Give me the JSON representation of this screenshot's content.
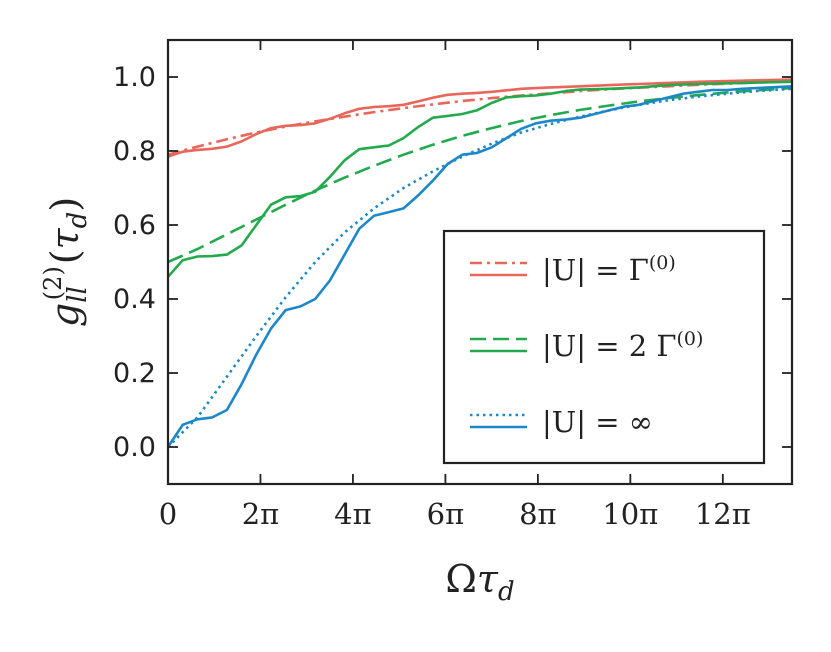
{
  "chart_data": {
    "type": "line",
    "title": "",
    "xlabel": "Ωτ_d",
    "ylabel": "g_ll^(2)(τ_d)",
    "xlim": [
      0,
      42.4
    ],
    "ylim": [
      -0.1,
      1.1
    ],
    "x_ticks": [
      {
        "value": 0,
        "label": "0"
      },
      {
        "value": 6.2832,
        "label": "2π"
      },
      {
        "value": 12.5664,
        "label": "4π"
      },
      {
        "value": 18.8496,
        "label": "6π"
      },
      {
        "value": 25.1327,
        "label": "8π"
      },
      {
        "value": 31.4159,
        "label": "10π"
      },
      {
        "value": 37.6991,
        "label": "12π"
      }
    ],
    "y_ticks": [
      {
        "value": 0.0,
        "label": "0.0"
      },
      {
        "value": 0.2,
        "label": "0.2"
      },
      {
        "value": 0.4,
        "label": "0.4"
      },
      {
        "value": 0.6,
        "label": "0.6"
      },
      {
        "value": 0.8,
        "label": "0.8"
      },
      {
        "value": 1.0,
        "label": "1.0"
      }
    ],
    "grid": false,
    "legend_position": "lower-right",
    "series": [
      {
        "name": "|U| = Γ^(0)",
        "kind": "approx",
        "style": "dashdot",
        "color": "#e9675a",
        "x": [
          0,
          2,
          4,
          6,
          8,
          10,
          12,
          14,
          16,
          18,
          20,
          22,
          24,
          26,
          28,
          30,
          32,
          34,
          36,
          38,
          40,
          42.4
        ],
        "y": [
          0.79,
          0.812,
          0.832,
          0.85,
          0.866,
          0.88,
          0.893,
          0.905,
          0.916,
          0.926,
          0.935,
          0.943,
          0.95,
          0.956,
          0.962,
          0.967,
          0.971,
          0.975,
          0.979,
          0.982,
          0.985,
          0.988
        ]
      },
      {
        "name": "|U| = Γ^(0)",
        "kind": "exact",
        "style": "solid",
        "color": "#e9675a",
        "x": [
          0,
          1,
          2,
          3,
          4,
          5,
          6,
          7,
          8,
          9,
          10,
          11,
          12,
          13,
          14,
          15,
          16,
          17,
          18,
          19,
          20,
          21,
          22,
          23,
          24,
          25,
          26,
          28,
          30,
          32,
          34,
          36,
          38,
          40,
          42.4
        ],
        "y": [
          0.785,
          0.798,
          0.803,
          0.806,
          0.812,
          0.826,
          0.846,
          0.862,
          0.868,
          0.87,
          0.875,
          0.887,
          0.902,
          0.914,
          0.919,
          0.921,
          0.925,
          0.934,
          0.944,
          0.952,
          0.955,
          0.957,
          0.96,
          0.964,
          0.968,
          0.97,
          0.972,
          0.975,
          0.978,
          0.981,
          0.984,
          0.987,
          0.989,
          0.991,
          0.993
        ]
      },
      {
        "name": "|U| = 2 Γ^(0)",
        "kind": "approx",
        "style": "dashed",
        "color": "#22aa4d",
        "x": [
          0,
          2,
          4,
          6,
          8,
          10,
          12,
          14,
          16,
          18,
          20,
          22,
          24,
          26,
          28,
          30,
          32,
          34,
          36,
          38,
          40,
          42.4
        ],
        "y": [
          0.5,
          0.535,
          0.575,
          0.615,
          0.655,
          0.693,
          0.728,
          0.76,
          0.79,
          0.817,
          0.841,
          0.862,
          0.881,
          0.897,
          0.911,
          0.923,
          0.934,
          0.943,
          0.951,
          0.958,
          0.964,
          0.97
        ]
      },
      {
        "name": "|U| = 2 Γ^(0)",
        "kind": "exact",
        "style": "solid",
        "color": "#22aa4d",
        "x": [
          0,
          1,
          2,
          3,
          4,
          5,
          6,
          7,
          8,
          9,
          10,
          11,
          12,
          13,
          14,
          15,
          16,
          17,
          18,
          19,
          20,
          21,
          22,
          23,
          24,
          25,
          26,
          27,
          28,
          30,
          32,
          34,
          36,
          38,
          40,
          42.4
        ],
        "y": [
          0.46,
          0.505,
          0.515,
          0.516,
          0.52,
          0.545,
          0.6,
          0.655,
          0.675,
          0.678,
          0.69,
          0.73,
          0.775,
          0.805,
          0.81,
          0.815,
          0.835,
          0.865,
          0.89,
          0.895,
          0.9,
          0.91,
          0.93,
          0.945,
          0.948,
          0.95,
          0.955,
          0.962,
          0.966,
          0.968,
          0.972,
          0.978,
          0.981,
          0.983,
          0.985,
          0.987
        ]
      },
      {
        "name": "|U| = ∞",
        "kind": "approx",
        "style": "dotted",
        "color": "#1c87c9",
        "x": [
          0,
          2,
          4,
          6,
          8,
          10,
          12,
          14,
          16,
          18,
          20,
          22,
          24,
          26,
          28,
          30,
          32,
          34,
          36,
          38,
          40,
          42.4
        ],
        "y": [
          0.0,
          0.08,
          0.19,
          0.3,
          0.405,
          0.5,
          0.58,
          0.645,
          0.7,
          0.745,
          0.785,
          0.82,
          0.85,
          0.873,
          0.893,
          0.91,
          0.925,
          0.937,
          0.947,
          0.955,
          0.962,
          0.968
        ]
      },
      {
        "name": "|U| = ∞",
        "kind": "exact",
        "style": "solid",
        "color": "#1c87c9",
        "x": [
          0,
          1,
          2,
          3,
          4,
          5,
          6,
          7,
          8,
          9,
          10,
          11,
          12,
          13,
          14,
          15,
          16,
          17,
          18,
          19,
          20,
          21,
          22,
          23,
          24,
          25,
          26,
          27,
          28,
          29,
          30,
          31,
          32,
          33,
          34,
          35,
          36,
          37,
          38,
          39,
          40,
          42.4
        ],
        "y": [
          0.0,
          0.06,
          0.075,
          0.08,
          0.1,
          0.17,
          0.25,
          0.32,
          0.37,
          0.38,
          0.4,
          0.45,
          0.52,
          0.59,
          0.625,
          0.635,
          0.645,
          0.68,
          0.72,
          0.765,
          0.79,
          0.795,
          0.81,
          0.835,
          0.86,
          0.875,
          0.882,
          0.885,
          0.89,
          0.9,
          0.91,
          0.92,
          0.925,
          0.935,
          0.945,
          0.955,
          0.96,
          0.965,
          0.965,
          0.968,
          0.97,
          0.975
        ]
      }
    ],
    "legend": [
      {
        "label": "|U| = Γ",
        "sup": "(0)",
        "color": "#e9675a",
        "top_style": "dashdot"
      },
      {
        "label": "|U| = 2 Γ",
        "sup": "(0)",
        "color": "#22aa4d",
        "top_style": "dashed"
      },
      {
        "label": "|U| = ∞",
        "sup": "",
        "color": "#1c87c9",
        "top_style": "dotted"
      }
    ]
  }
}
